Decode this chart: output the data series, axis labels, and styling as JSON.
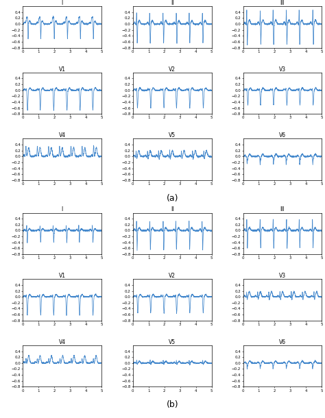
{
  "figure_bg": "#ffffff",
  "line_color": "#4488CC",
  "line_width": 0.55,
  "lead_order": [
    "I",
    "II",
    "III",
    "V1",
    "V2",
    "V3",
    "V4",
    "V5",
    "V6"
  ],
  "group_labels": [
    "(a)",
    "(b)"
  ],
  "tick_fontsize": 4.0,
  "label_fontsize": 5.5,
  "group_label_fontsize": 9,
  "ylim_all": [
    -0.8,
    0.6
  ],
  "yticks_all": [
    0.4,
    0.2,
    0,
    -0.2,
    -0.4,
    -0.6,
    -0.8
  ]
}
